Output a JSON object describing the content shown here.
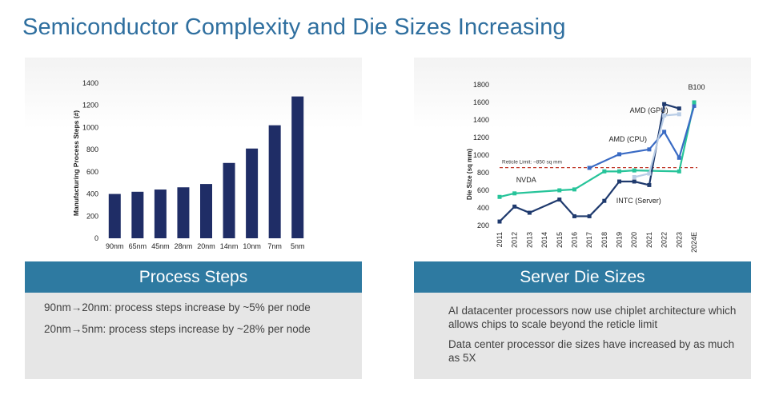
{
  "page": {
    "title": "Semiconductor Complexity and Die Sizes Increasing"
  },
  "left_panel": {
    "header": "Process Steps",
    "bullets": [
      "90nm→20nm: process steps increase by ~5% per node",
      "20nm→5nm: process steps increase by ~28% per node"
    ]
  },
  "right_panel": {
    "header": "Server Die Sizes",
    "bullets": [
      "AI datacenter processors now use chiplet architecture which allows chips to scale beyond the reticle limit",
      "Data center processor die sizes have increased by as much as 5X"
    ]
  },
  "chart_data": [
    {
      "type": "bar",
      "title": "",
      "xlabel": "",
      "ylabel": "Manufacturing Process Steps (#)",
      "categories": [
        "90nm",
        "65nm",
        "45nm",
        "28nm",
        "20nm",
        "14nm",
        "10nm",
        "7nm",
        "5nm"
      ],
      "values": [
        400,
        420,
        440,
        460,
        490,
        680,
        810,
        1020,
        1280
      ],
      "ylim": [
        0,
        1400
      ],
      "yticks": [
        "0",
        "200",
        "400",
        "600",
        "800",
        "1000",
        "1200",
        "1400"
      ],
      "color": "#1f2d66",
      "grid": false
    },
    {
      "type": "line",
      "title": "",
      "xlabel": "",
      "ylabel": "Die Size (sq mm)",
      "x": [
        "2011",
        "2012",
        "2013",
        "2014",
        "2015",
        "2016",
        "2017",
        "2018",
        "2019",
        "2020",
        "2021",
        "2022",
        "2023",
        "2024E"
      ],
      "ylim": [
        200,
        1800
      ],
      "yticks": [
        "200",
        "400",
        "600",
        "800",
        "1000",
        "1200",
        "1400",
        "1600",
        "1800"
      ],
      "grid": false,
      "series": [
        {
          "name": "NVDA",
          "color": "#27c49a",
          "points": [
            [
              0,
              525
            ],
            [
              1,
              565
            ],
            [
              4,
              600
            ],
            [
              5,
              610
            ],
            [
              7,
              815
            ],
            [
              8,
              815
            ],
            [
              9,
              826
            ],
            [
              12,
              815
            ],
            [
              13,
              1600
            ]
          ]
        },
        {
          "name": "INTC (Server)",
          "color": "#1f3a6e",
          "points": [
            [
              0,
              245
            ],
            [
              1,
              415
            ],
            [
              2,
              345
            ],
            [
              4,
              495
            ],
            [
              5,
              305
            ],
            [
              6,
              305
            ],
            [
              7,
              480
            ],
            [
              8,
              700
            ],
            [
              9,
              700
            ],
            [
              10,
              660
            ],
            [
              11,
              1580
            ],
            [
              12,
              1530
            ]
          ]
        },
        {
          "name": "AMD (CPU)",
          "color": "#3a6bc4",
          "points": [
            [
              6,
              855
            ],
            [
              8,
              1010
            ],
            [
              10,
              1065
            ],
            [
              11,
              1265
            ],
            [
              12,
              970
            ],
            [
              13,
              1560
            ]
          ]
        },
        {
          "name": "AMD (GPU)",
          "color": "#b9cde6",
          "points": [
            [
              9,
              750
            ],
            [
              10,
              790
            ],
            [
              11,
              1450
            ],
            [
              12,
              1465
            ]
          ]
        },
        {
          "name": "B100",
          "color": "#27c49a",
          "points": [
            [
              13,
              1600
            ]
          ]
        }
      ],
      "reference_line": {
        "label": "Reticle Limit: ~850 sq mm",
        "value": 858,
        "color": "#c0392b"
      }
    }
  ]
}
